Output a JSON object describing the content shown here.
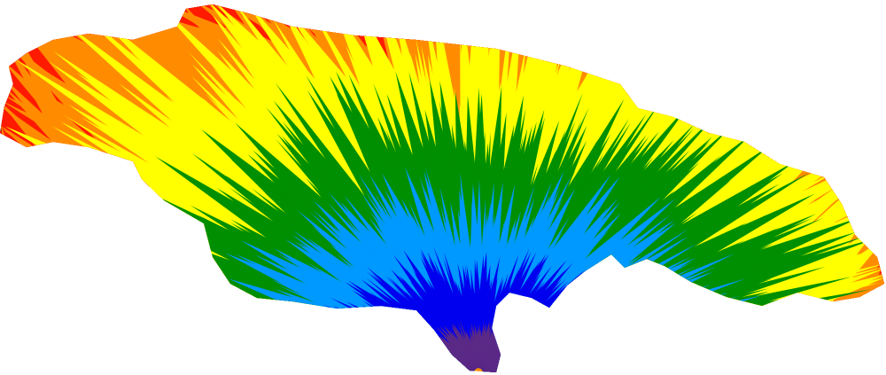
{
  "map": {
    "region": "Jamaica",
    "style": "rainbow radial spikes",
    "colors": [
      "#5b2a86",
      "#0000ee",
      "#0099ff",
      "#008f00",
      "#ffff00",
      "#ff8c00",
      "#ff1a00",
      "#8b0a0a"
    ],
    "background": "#ffffff"
  }
}
